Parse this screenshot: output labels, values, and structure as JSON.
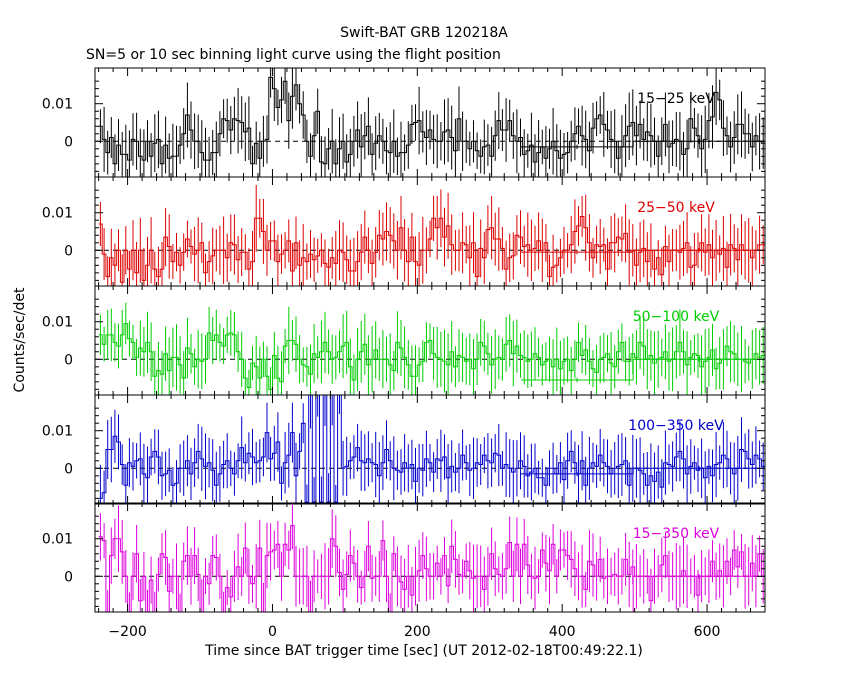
{
  "chart_data": {
    "type": "line",
    "style": "step",
    "title": "Swift-BAT GRB 120218A",
    "subtitle": "SN=5 or 10 sec binning light curve using the flight position",
    "xlabel": "Time since BAT trigger time [sec] (UT 2012-02-18T00:49:22.1)",
    "ylabel": "Counts/sec/det",
    "xlim": [
      -245,
      680
    ],
    "ylim": [
      -0.0095,
      0.0195
    ],
    "xticks": [
      -200,
      0,
      200,
      400,
      600
    ],
    "xtick_labels": [
      "−200",
      "0",
      "200",
      "400",
      "600"
    ],
    "yticks": [
      0,
      0.01
    ],
    "ytick_labels": [
      "0",
      "0.01"
    ],
    "grid": false,
    "reference_line": {
      "y": 0,
      "style": "dashed"
    },
    "panels": [
      {
        "band": "15−25 keV",
        "color": "#000000",
        "bin_width": 5,
        "x_start": -240,
        "values": [
          0.004,
          0.0005,
          -0.003,
          0.001,
          -0.006,
          -0.001,
          -0.0035,
          -0.0035,
          -0.005,
          0.0005,
          0.0,
          -0.004,
          -0.005,
          0.0,
          -0.004,
          -0.0005,
          0.0005,
          -0.006,
          -0.001,
          -0.0045,
          -0.004,
          -0.004,
          -0.001,
          0.002,
          0.007,
          0.003,
          0.0,
          0.0,
          -0.003,
          -0.005,
          -0.005,
          -0.003,
          -0.003,
          0.002,
          0.006,
          0.0055,
          0.003,
          0.006,
          0.0055,
          0.005,
          0.0025,
          0.0035,
          -0.006,
          -0.0005,
          -0.0045,
          0.0,
          0.0005,
          0.017,
          0.014,
          0.009,
          0.011,
          0.016,
          0.0055,
          0.012,
          0.015,
          0.01,
          0.007,
          0.0,
          -0.004,
          0.0015,
          0.008,
          -0.0055,
          -0.006,
          -0.002,
          0.0,
          -0.006,
          -0.002,
          0.0,
          -0.0055,
          -0.0035,
          0.0,
          0.003,
          -0.0015,
          0.0015,
          0.004,
          -0.0035,
          -0.0005,
          0.0015,
          0.0,
          -0.0025,
          -0.003,
          0.0,
          -0.004,
          -0.003,
          -0.003,
          -0.001,
          0.0045,
          0.005,
          0.0055,
          0.0025,
          0.001,
          0.003,
          0.0005,
          0.0,
          0.0,
          0.0025,
          0.003,
          0.001,
          -0.0025,
          0.006,
          0.0,
          0.0,
          -0.002,
          0.0,
          -0.0025,
          -0.004,
          -0.0015,
          -0.001,
          -0.004,
          0.0015,
          0.0055,
          0.003,
          0.003,
          0.0055,
          0.0015,
          0.0,
          0.001,
          -0.0035,
          -0.0025,
          -0.001,
          -0.0055,
          -0.003,
          -0.0015,
          -0.0045,
          -0.002,
          0.0,
          -0.0025,
          -0.0045,
          -0.0035,
          -0.003,
          0.0,
          0.002,
          0.004,
          0.0015,
          0.0005,
          -0.0025,
          0.0035,
          0.006,
          0.007,
          0.0045,
          0.003,
          0.0005,
          0.0,
          -0.0045,
          -0.0015,
          0.0015,
          0.004,
          0.005,
          0.0015,
          0.0045,
          0.0005,
          0.0025,
          0.0015,
          0.0,
          -0.004,
          0.0,
          0.0045,
          -0.0015,
          -0.0005,
          0.0005,
          0.0,
          -0.0035,
          -0.002,
          0.006,
          0.0035,
          0.0015,
          -0.002,
          0.0005,
          0.0055,
          0.0065,
          0.013,
          0.011,
          0.0035,
          0.0015,
          -0.0015,
          0.001,
          0.0045,
          0.0045,
          0.002,
          0.002,
          -0.0015,
          0.0015,
          0.0,
          -0.0005,
          0.0015,
          0.0045,
          0.004,
          0.008,
          0.013,
          -0.004
        ],
        "tail": [
          {
            "x0": 343,
            "x1": 498,
            "y": -0.0015
          },
          {
            "x0": 498,
            "x1": 680,
            "y": 0.0
          }
        ]
      },
      {
        "band": "25−50 keV",
        "color": "#dd0000",
        "bin_width": 5,
        "x_start": -240,
        "values": [
          0.007,
          -0.001,
          -0.007,
          -0.002,
          -0.004,
          0.0,
          -0.0085,
          0.0,
          -0.005,
          0.0,
          -0.006,
          0.0,
          -0.008,
          -0.004,
          0.0,
          -0.005,
          -0.007,
          -0.005,
          0.0035,
          0.001,
          -0.003,
          -0.0005,
          -0.004,
          -0.0005,
          0.003,
          0.001,
          -0.001,
          0.0,
          0.002,
          -0.006,
          -0.003,
          -0.0015,
          0.0,
          0.0,
          0.0,
          -0.002,
          0.002,
          0.0015,
          -0.0025,
          -0.0005,
          -0.0005,
          -0.005,
          -0.003,
          0.0085,
          0.0085,
          0.005,
          0.0,
          0.0025,
          0.0025,
          -0.003,
          -0.001,
          0.0,
          0.0025,
          -0.0055,
          0.002,
          -0.004,
          -0.002,
          -0.003,
          -0.001,
          -0.0025,
          -0.0015,
          0.0,
          -0.0035,
          -0.0045,
          -0.002,
          -0.0035,
          0.0,
          -0.0005,
          -0.0025,
          -0.0055,
          -0.0055,
          -0.003,
          -0.0005,
          0.0035,
          0.0,
          -0.0035,
          -0.0005,
          0.004,
          0.003,
          0.005,
          0.004,
          0.0025,
          0.0,
          0.006,
          0.0,
          -0.003,
          0.0035,
          -0.003,
          -0.004,
          0.0,
          0.0,
          0.003,
          0.0085,
          0.006,
          0.0085,
          0.0035,
          0.0065,
          0.0015,
          0.0,
          0.0,
          0.002,
          0.0015,
          -0.002,
          0.002,
          -0.007,
          0.0005,
          -0.002,
          0.0055,
          0.006,
          0.003,
          0.003,
          0.0005,
          -0.005,
          -0.002,
          -0.0015,
          0.004,
          0.0035,
          0.001,
          0.0015,
          0.0,
          0.0005,
          0.0025,
          0.0,
          0.002,
          -0.007,
          -0.0045,
          -0.004,
          -0.002,
          0.0,
          0.0,
          0.0015,
          0.005,
          0.0065,
          0.009,
          0.006,
          0.002,
          -0.002,
          0.0015,
          0.001,
          0.0015,
          -0.005,
          0.002,
          0.002,
          0.0035,
          0.003,
          0.0045,
          -0.0005,
          0.0,
          -0.004,
          -0.0005,
          0.0005,
          -0.003,
          0.0,
          -0.005,
          -0.002,
          -0.0065,
          0.001,
          -0.003,
          0.0,
          0.0,
          -0.0005,
          0.0005,
          0.002,
          -0.0045,
          -0.004,
          0.0,
          0.002,
          -0.0005,
          0.0015,
          -0.002,
          0.0,
          -0.001,
          0.0005,
          -0.0045,
          0.0015,
          0.0005,
          -0.0025,
          0.0015,
          0.0,
          0.0,
          -0.002,
          0.0,
          0.0015,
          0.0015,
          0.0035,
          0.003,
          0.0,
          -0.0005,
          0.0005,
          0.002,
          0.0005,
          0.0035,
          0.0025,
          -0.0005
        ],
        "tail": [
          {
            "x0": 343,
            "x1": 498,
            "y": -0.0005
          },
          {
            "x0": 498,
            "x1": 680,
            "y": 0.0
          }
        ]
      },
      {
        "band": "50−100 keV",
        "color": "#00cc00",
        "bin_width": 5,
        "x_start": -240,
        "values": [
          0.0065,
          0.004,
          0.0065,
          0.0065,
          0.0045,
          0.0035,
          0.0065,
          0.0095,
          0.0055,
          0.0045,
          0.0005,
          0.003,
          0.002,
          0.0045,
          0.002,
          -0.0045,
          -0.003,
          -0.004,
          0.0015,
          -0.003,
          0.0005,
          0.0005,
          -0.0015,
          -0.005,
          0.003,
          0.0015,
          -0.002,
          0.0,
          -0.0005,
          0.0,
          0.007,
          0.005,
          0.0065,
          0.0045,
          0.0035,
          0.0065,
          0.007,
          0.0065,
          0.002,
          0.0,
          -0.005,
          -0.0075,
          -0.001,
          -0.002,
          -0.005,
          0.0,
          -0.0045,
          -0.008,
          0.001,
          -0.005,
          -0.006,
          0.0035,
          0.005,
          0.005,
          0.004,
          0.0,
          -0.0015,
          -0.002,
          -0.004,
          0.0015,
          0.0005,
          0.002,
          0.0045,
          0.002,
          0.0,
          0.0005,
          0.002,
          0.0035,
          0.0045,
          -0.002,
          -0.0055,
          0.0,
          0.002,
          0.004,
          -0.0015,
          0.0,
          0.0025,
          0.0,
          0.0,
          0.0,
          -0.0015,
          -0.003,
          0.0045,
          0.003,
          0.0005,
          -0.0015,
          -0.0045,
          -0.0045,
          -0.0015,
          -0.0005,
          0.0045,
          0.005,
          0.0015,
          0.0005,
          0.0,
          -0.0005,
          -0.0015,
          0.002,
          -0.002,
          0.001,
          0.0005,
          -0.0005,
          0.0,
          -0.0025,
          0.0,
          0.0045,
          0.0035,
          0.0015,
          -0.0015,
          0.0,
          0.0005,
          0.0,
          0.004,
          0.005,
          0.0015,
          0.0035,
          0.001,
          0.0005,
          -0.0005,
          0.0,
          0.0015,
          0.0005,
          -0.0015,
          -0.0005,
          0.0,
          -0.002,
          0.0,
          -0.0025,
          -0.0005,
          0.0,
          -0.003,
          0.0,
          0.0045,
          0.001,
          0.0025,
          -0.0005,
          -0.0025,
          -0.0035,
          0.0,
          0.0005,
          0.0015,
          -0.001,
          -0.002,
          0.002,
          0.0045,
          -0.0005,
          -0.0005,
          0.0015,
          0.0005,
          0.0045,
          0.0035,
          0.0,
          0.001,
          -0.001,
          0.0,
          0.0005,
          0.002,
          -0.0005,
          0.0,
          0.002,
          0.0045,
          0.002,
          -0.0015,
          0.0005,
          0.0015,
          0.001,
          -0.002,
          -0.0005,
          0.0005,
          0.0025,
          -0.0025,
          -0.001,
          0.0,
          0.0035,
          0.002,
          0.0015,
          0.0,
          0.0,
          -0.0005,
          -0.001,
          0.0,
          0.0015,
          0.0005,
          0.001,
          0.0045,
          0.002,
          0.0045,
          0.0045,
          0.002,
          -0.002,
          0.0,
          0.0005,
          -0.0015,
          -0.0005,
          -0.002,
          0.0005,
          0.0015,
          -0.0035
        ],
        "tail": [
          {
            "x0": 343,
            "x1": 498,
            "y": -0.0055
          },
          {
            "x0": 498,
            "x1": 680,
            "y": 0.0
          }
        ]
      },
      {
        "band": "100−350 keV",
        "color": "#0000cc",
        "bin_width": 5,
        "x_start": -240,
        "values": [
          -0.008,
          -0.0065,
          0.005,
          0.005,
          0.0085,
          0.007,
          0.001,
          -0.0045,
          0.0015,
          0.0005,
          0.002,
          0.0025,
          -0.0015,
          -0.0025,
          0.003,
          0.0045,
          0.003,
          -0.002,
          -0.0015,
          -0.0005,
          -0.0045,
          -0.004,
          0.0,
          0.0,
          0.002,
          -0.0015,
          0.0015,
          0.0045,
          0.0025,
          0.0005,
          0.0015,
          -0.0005,
          -0.0045,
          -0.0015,
          0.001,
          0.002,
          0.0,
          -0.0015,
          0.002,
          0.0055,
          0.0015,
          0.004,
          0.003,
          0.0015,
          0.002,
          0.003,
          0.0095,
          0.0025,
          0.004,
          0.007,
          -0.004,
          0.0015,
          0.0035,
          0.0095,
          -0.002,
          0.0045,
          0.012,
          -0.009,
          0.0195,
          -0.009,
          0.0195,
          -0.009,
          0.0195,
          -0.009,
          0.0195,
          -0.009,
          0.0195,
          0.0,
          0.0005,
          0.002,
          0.003,
          0.0055,
          0.002,
          0.0015,
          0.0025,
          0.0015,
          0.001,
          -0.002,
          0.0015,
          0.005,
          0.002,
          0.0,
          -0.0005,
          -0.001,
          0.0015,
          0.0,
          0.001,
          -0.0035,
          0.0,
          -0.0005,
          0.0025,
          0.0015,
          -0.001,
          0.0025,
          0.002,
          0.003,
          -0.0025,
          0.0005,
          -0.001,
          0.0,
          0.0035,
          0.0015,
          -0.0005,
          0.0,
          0.0015,
          0.001,
          0.0035,
          0.002,
          0.0015,
          0.004,
          0.0035,
          0.0,
          0.001,
          0.0,
          -0.001,
          0.0,
          0.002,
          0.0005,
          -0.002,
          -0.001,
          0.0,
          -0.0025,
          -0.0025,
          -0.0045,
          0.0,
          0.0,
          -0.0015,
          0.0015,
          -0.003,
          0.002,
          0.0045,
          0.0015,
          -0.0015,
          0.002,
          -0.0045,
          0.0,
          0.0015,
          0.0005,
          0.0035,
          0.0015,
          0.0005,
          -0.0015,
          0.0,
          0.0005,
          0.001,
          0.002,
          -0.0045,
          0.0,
          0.0,
          -0.0005,
          -0.0015,
          -0.0045,
          -0.002,
          -0.0035,
          -0.001,
          -0.005,
          0.0015,
          0.001,
          0.0005,
          0.003,
          0.0045,
          0.0025,
          -0.0015,
          0.0005,
          0.0015,
          -0.0005,
          0.0,
          -0.0025,
          0.0005,
          -0.002,
          0.001,
          0.0015,
          0.0035,
          0.0025,
          0.0,
          -0.0015,
          0.0,
          0.005,
          0.0045,
          0.0025,
          0.001,
          0.0035,
          0.0025,
          0.0005,
          0.0015,
          0.005,
          0.0015,
          0.0,
          -0.003,
          0.0005,
          0.001,
          0.0045,
          0.0045,
          0.0,
          0.0,
          -0.0005,
          0.004,
          0.0005,
          -0.0035,
          -0.001
        ],
        "tail": [
          {
            "x0": 343,
            "x1": 498,
            "y": -0.0015
          },
          {
            "x0": 498,
            "x1": 680,
            "y": 0.0
          }
        ]
      },
      {
        "band": "15−350 keV",
        "color": "#dd00dd",
        "bin_width": 5,
        "x_start": -240,
        "values": [
          0.0105,
          0.0095,
          -0.0095,
          0.0055,
          0.01,
          0.01,
          0.0065,
          0.0,
          -0.0095,
          0.0,
          0.006,
          -0.0065,
          0.0,
          -0.0095,
          -0.001,
          -0.0095,
          0.0005,
          0.006,
          0.005,
          -0.004,
          0.0,
          0.0,
          -0.0095,
          0.004,
          0.0055,
          0.0,
          0.0055,
          0.0005,
          -0.0095,
          0.0,
          -0.002,
          0.0055,
          0.005,
          0.0,
          -0.0095,
          -0.003,
          -0.0055,
          0.0,
          0.0025,
          0.0,
          0.0075,
          0.0,
          -0.002,
          0.0,
          0.0075,
          -0.0095,
          0.0055,
          0.0065,
          0.007,
          0.0085,
          0.0,
          0.0085,
          0.007,
          0.0135,
          0.0,
          0.0,
          0.0,
          0.0,
          -0.0095,
          0.0,
          0.0,
          0.0,
          0.0,
          0.0,
          0.01,
          0.008,
          0.001,
          -0.0035,
          0.0005,
          0.0055,
          0.0035,
          0.0,
          -0.003,
          0.0,
          0.008,
          -0.0005,
          0.0,
          0.0,
          0.0095,
          0.0,
          -0.0095,
          0.006,
          0.0,
          -0.0015,
          -0.0035,
          0.0,
          -0.005,
          0.0,
          0.0015,
          0.0055,
          0.002,
          0.0,
          0.0,
          0.0035,
          0.0,
          0.0055,
          -0.0025,
          0.008,
          0.0045,
          0.0005,
          0.0,
          0.004,
          0.0015,
          -0.0005,
          0.0,
          0.0,
          -0.0035,
          0.0,
          0.006,
          0.002,
          0.0005,
          0.0,
          0.002,
          0.009,
          0.0,
          0.0085,
          0.0,
          0.0085,
          0.003,
          0.0,
          -0.0005,
          0.0,
          0.007,
          0.0035,
          0.0015,
          0.0085,
          0.0,
          0.007,
          0.007,
          0.0055,
          0.0045,
          0.002,
          0.0,
          0.0,
          -0.0035,
          0.004,
          0.003,
          0.0,
          0.0045,
          -0.0005,
          0.0,
          0.0,
          0.0005,
          0.0,
          0.0,
          0.0045,
          0.0005,
          0.0025,
          0.0,
          0.0,
          0.0,
          0.0,
          -0.0065,
          0.0,
          0.0,
          0.003,
          0.0055,
          0.0,
          0.0,
          0.0,
          0.0,
          0.0015,
          0.0,
          0.0,
          0.0,
          -0.005,
          0.0,
          0.0,
          0.0,
          0.004,
          0.0,
          0.0015,
          0.0,
          0.004,
          0.0,
          0.007,
          0.0025,
          0.0065,
          0.0,
          0.0,
          0.0035,
          0.0,
          0.006,
          0.0,
          0.007,
          0.0115,
          0.0085,
          0.008,
          0.0075,
          0.005,
          0.0,
          0.0,
          0.0,
          0.0,
          0.0,
          0.0,
          0.0,
          0.0,
          0.0,
          0.0,
          0.0,
          0.0
        ],
        "tail": [
          {
            "x0": 343,
            "x1": 498,
            "y": -0.0095
          },
          {
            "x0": 498,
            "x1": 680,
            "y": 0.0
          }
        ]
      }
    ]
  }
}
